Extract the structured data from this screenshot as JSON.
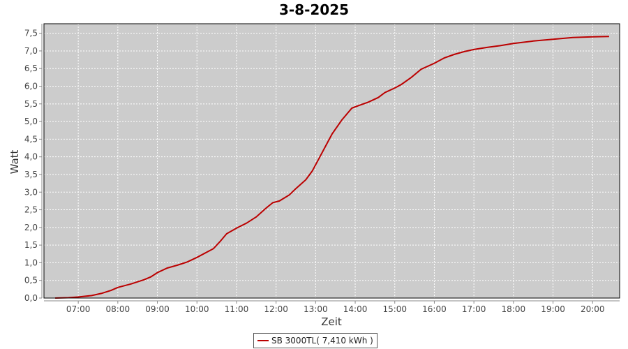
{
  "chart_data": {
    "type": "line",
    "title": "3-8-2025",
    "xlabel": "Zeit",
    "ylabel": "Watt",
    "xlim": [
      "06:08",
      "20:41"
    ],
    "ylim": [
      0,
      7.77
    ],
    "grid": true,
    "legend_placement": "bottom",
    "colors": {
      "plot_bg": "#cccccc",
      "series": "#bb0000",
      "grid": "#ffffff"
    },
    "x_ticks": [
      "07:00",
      "08:00",
      "09:00",
      "10:00",
      "11:00",
      "12:00",
      "13:00",
      "14:00",
      "15:00",
      "16:00",
      "17:00",
      "18:00",
      "19:00",
      "20:00"
    ],
    "y_ticks": [
      "0,0",
      "0,5",
      "1,0",
      "1,5",
      "2,0",
      "2,5",
      "3,0",
      "3,5",
      "4,0",
      "4,5",
      "5,0",
      "5,5",
      "6,0",
      "6,5",
      "7,0",
      "7,5"
    ],
    "series": [
      {
        "name": "SB 3000TL( 7,410 kWh )",
        "x": [
          "06:25",
          "06:45",
          "07:00",
          "07:20",
          "07:35",
          "07:50",
          "08:00",
          "08:20",
          "08:40",
          "08:50",
          "09:00",
          "09:15",
          "09:30",
          "09:45",
          "10:00",
          "10:15",
          "10:25",
          "10:35",
          "10:45",
          "11:00",
          "11:15",
          "11:30",
          "11:45",
          "11:55",
          "12:05",
          "12:20",
          "12:30",
          "12:45",
          "12:55",
          "13:05",
          "13:15",
          "13:25",
          "13:40",
          "13:55",
          "14:05",
          "14:20",
          "14:35",
          "14:45",
          "15:00",
          "15:10",
          "15:25",
          "15:40",
          "16:00",
          "16:15",
          "16:30",
          "16:45",
          "17:00",
          "17:20",
          "17:40",
          "18:00",
          "18:30",
          "19:00",
          "19:30",
          "20:00",
          "20:25"
        ],
        "values": [
          0,
          0.01,
          0.03,
          0.07,
          0.13,
          0.22,
          0.3,
          0.4,
          0.52,
          0.6,
          0.72,
          0.85,
          0.93,
          1.02,
          1.15,
          1.3,
          1.4,
          1.6,
          1.82,
          1.98,
          2.12,
          2.3,
          2.55,
          2.7,
          2.75,
          2.92,
          3.1,
          3.35,
          3.6,
          3.95,
          4.3,
          4.65,
          5.05,
          5.38,
          5.45,
          5.55,
          5.68,
          5.82,
          5.95,
          6.05,
          6.25,
          6.48,
          6.65,
          6.8,
          6.9,
          6.98,
          7.04,
          7.1,
          7.15,
          7.21,
          7.28,
          7.33,
          7.38,
          7.4,
          7.41
        ]
      }
    ]
  }
}
